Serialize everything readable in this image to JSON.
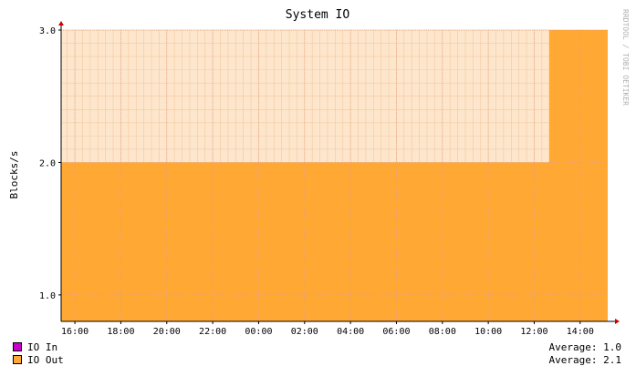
{
  "chart_data": {
    "type": "area",
    "title": "System IO",
    "ylabel": "Blocks/s",
    "xlabel": "",
    "watermark": "RRDTOOL / TOBI OETIKER",
    "x_ticks": [
      "16:00",
      "18:00",
      "20:00",
      "22:00",
      "00:00",
      "02:00",
      "04:00",
      "06:00",
      "08:00",
      "10:00",
      "12:00",
      "14:00"
    ],
    "y_ticks": [
      "1.0",
      "2.0",
      "3.0"
    ],
    "ylim": [
      0.8,
      3.0
    ],
    "grid": true,
    "series": [
      {
        "name": "IO In",
        "color": "#cc00cc",
        "hidden_behind": true,
        "average_label": "Average:",
        "average": "1.0",
        "points": [
          [
            15.4,
            1.0
          ],
          [
            39.2,
            1.0
          ]
        ]
      },
      {
        "name": "IO Out",
        "color": "#ffa833",
        "average_label": "Average:",
        "average": "2.1",
        "points": [
          [
            15.4,
            2.0
          ],
          [
            36.65,
            2.0
          ],
          [
            36.65,
            3.0
          ],
          [
            39.2,
            3.0
          ]
        ]
      }
    ],
    "colors": {
      "canvas": "#fde6cc",
      "grid_minor": "#f3c9a0",
      "grid_major": "#e8a085",
      "axis": "#000000",
      "arrow": "#cc0000",
      "peak_band": "#fbd8b8"
    }
  }
}
